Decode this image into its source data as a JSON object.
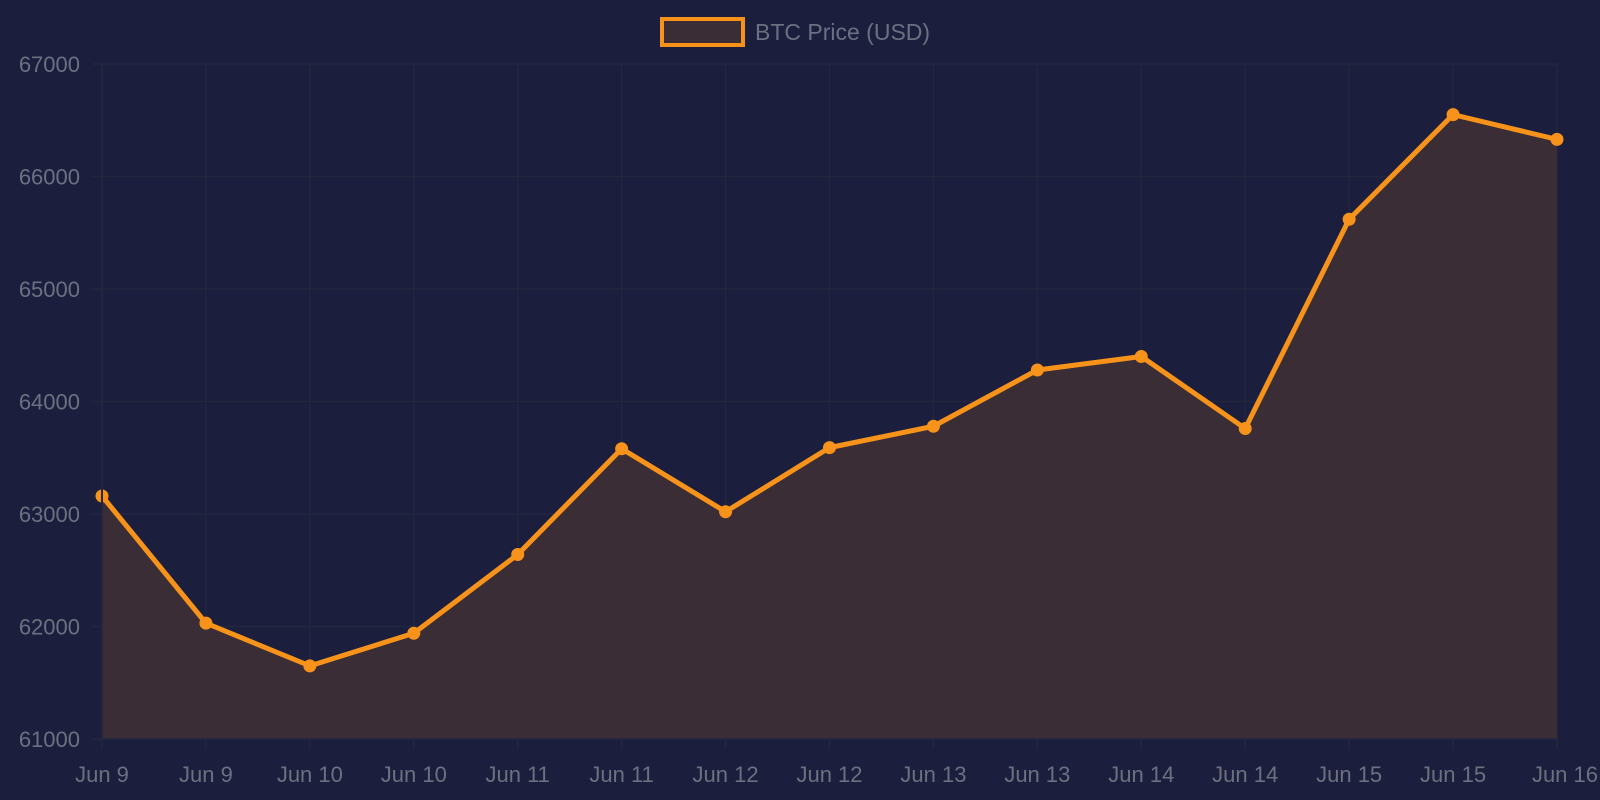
{
  "chart_data": {
    "type": "line",
    "filled": true,
    "categories": [
      "Jun 9",
      "Jun 9",
      "Jun 10",
      "Jun 10",
      "Jun 11",
      "Jun 11",
      "Jun 12",
      "Jun 12",
      "Jun 13",
      "Jun 13",
      "Jun 14",
      "Jun 14",
      "Jun 15",
      "Jun 15",
      "Jun 16"
    ],
    "series": [
      {
        "name": "BTC Price (USD)",
        "values": [
          63160,
          62030,
          61650,
          61940,
          62640,
          63580,
          63020,
          63590,
          63780,
          64280,
          64400,
          63760,
          65620,
          66550,
          66330
        ]
      }
    ],
    "ylim": [
      61000,
      67000
    ],
    "yticks": [
      61000,
      62000,
      63000,
      64000,
      65000,
      66000,
      67000
    ],
    "grid": true,
    "legend_position": "top-center",
    "colors": {
      "background": "#1b1e3d",
      "line": "#f7931a",
      "fill": "#3a2d35",
      "grid": "#23263f",
      "text": "#6d7080"
    }
  }
}
